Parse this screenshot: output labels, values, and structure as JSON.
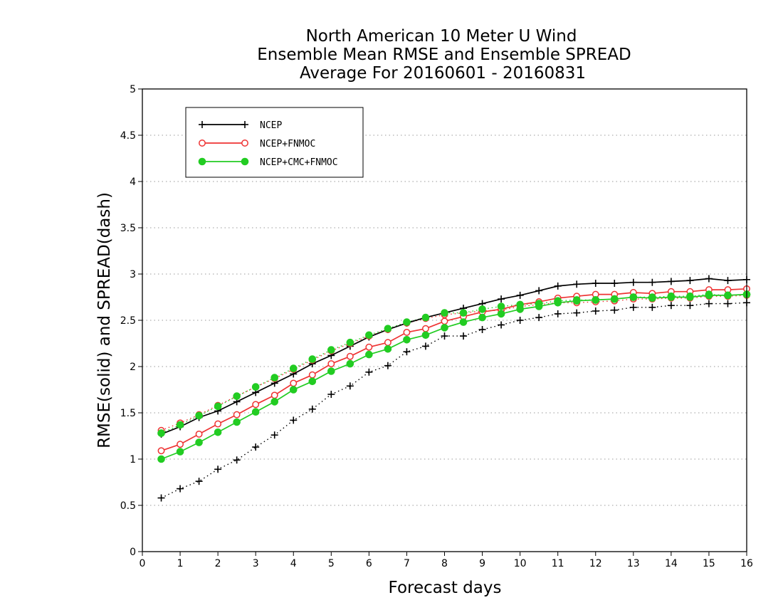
{
  "chart_data": {
    "type": "line",
    "title": [
      "North American 10 Meter U Wind",
      "Ensemble Mean RMSE and Ensemble SPREAD",
      "Average For 20160601 - 20160831"
    ],
    "xlabel": "Forecast days",
    "ylabel": "RMSE(solid) and SPREAD(dash)",
    "xlim": [
      0,
      16
    ],
    "ylim": [
      0,
      5
    ],
    "xticks": [
      "0",
      "1",
      "2",
      "3",
      "4",
      "5",
      "6",
      "7",
      "8",
      "9",
      "10",
      "11",
      "12",
      "13",
      "14",
      "15",
      "16"
    ],
    "yticks": [
      "0",
      "0.5",
      "1",
      "1.5",
      "2",
      "2.5",
      "3",
      "3.5",
      "4",
      "4.5",
      "5"
    ],
    "grid": "horizontal dotted",
    "legend_position": "top-left",
    "x": [
      0.5,
      1,
      1.5,
      2,
      2.5,
      3,
      3.5,
      4,
      4.5,
      5,
      5.5,
      6,
      6.5,
      7,
      7.5,
      8,
      8.5,
      9,
      9.5,
      10,
      10.5,
      11,
      11.5,
      12,
      12.5,
      13,
      13.5,
      14,
      14.5,
      15,
      15.5,
      16
    ],
    "series": [
      {
        "name": "NCEP",
        "color": "#000000",
        "marker": "plus",
        "rmse": [
          1.27,
          1.35,
          1.45,
          1.52,
          1.62,
          1.72,
          1.82,
          1.92,
          2.03,
          2.12,
          2.22,
          2.32,
          2.4,
          2.47,
          2.53,
          2.58,
          2.63,
          2.68,
          2.73,
          2.77,
          2.82,
          2.87,
          2.89,
          2.9,
          2.9,
          2.91,
          2.91,
          2.92,
          2.93,
          2.95,
          2.93,
          2.94
        ],
        "spread": [
          0.58,
          0.68,
          0.76,
          0.89,
          0.99,
          1.13,
          1.26,
          1.42,
          1.54,
          1.7,
          1.79,
          1.94,
          2.01,
          2.16,
          2.22,
          2.33,
          2.33,
          2.4,
          2.45,
          2.5,
          2.53,
          2.57,
          2.58,
          2.6,
          2.61,
          2.64,
          2.64,
          2.66,
          2.66,
          2.68,
          2.68,
          2.69
        ]
      },
      {
        "name": "NCEP+FNMOC",
        "color": "#ee3333",
        "marker": "open-circle",
        "rmse": [
          1.09,
          1.16,
          1.27,
          1.38,
          1.48,
          1.59,
          1.69,
          1.82,
          1.91,
          2.03,
          2.11,
          2.21,
          2.26,
          2.37,
          2.41,
          2.49,
          2.54,
          2.59,
          2.62,
          2.67,
          2.7,
          2.74,
          2.76,
          2.78,
          2.78,
          2.8,
          2.79,
          2.81,
          2.81,
          2.83,
          2.83,
          2.84
        ],
        "spread": [
          1.31,
          1.39,
          1.48,
          1.58,
          1.68,
          1.78,
          1.87,
          1.97,
          2.07,
          2.17,
          2.25,
          2.33,
          2.4,
          2.47,
          2.52,
          2.56,
          2.58,
          2.6,
          2.61,
          2.65,
          2.67,
          2.69,
          2.69,
          2.7,
          2.71,
          2.73,
          2.73,
          2.74,
          2.74,
          2.76,
          2.76,
          2.77
        ]
      },
      {
        "name": "NCEP+CMC+FNMOC",
        "color": "#22cc22",
        "marker": "filled-circle",
        "rmse": [
          1.0,
          1.08,
          1.18,
          1.29,
          1.4,
          1.51,
          1.62,
          1.75,
          1.84,
          1.95,
          2.03,
          2.13,
          2.19,
          2.29,
          2.34,
          2.42,
          2.48,
          2.53,
          2.57,
          2.62,
          2.65,
          2.69,
          2.71,
          2.72,
          2.73,
          2.75,
          2.74,
          2.75,
          2.75,
          2.77,
          2.77,
          2.78
        ],
        "spread": [
          1.28,
          1.37,
          1.47,
          1.57,
          1.68,
          1.78,
          1.88,
          1.98,
          2.08,
          2.18,
          2.26,
          2.34,
          2.41,
          2.48,
          2.53,
          2.58,
          2.58,
          2.62,
          2.65,
          2.67,
          2.68,
          2.71,
          2.72,
          2.72,
          2.73,
          2.75,
          2.75,
          2.76,
          2.76,
          2.78,
          2.77,
          2.78
        ]
      }
    ]
  }
}
